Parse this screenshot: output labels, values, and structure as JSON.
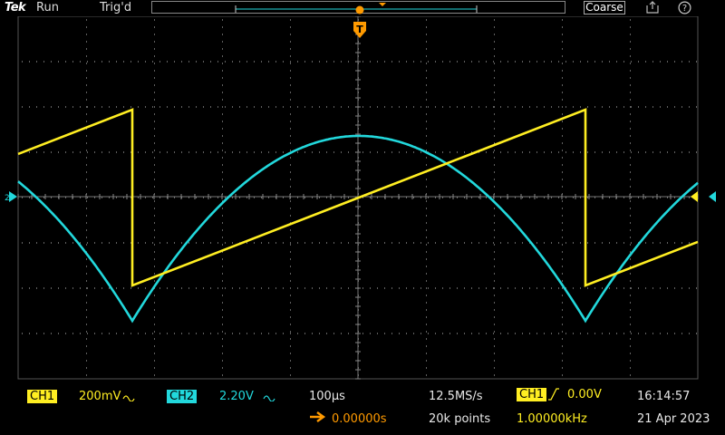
{
  "header": {
    "logo": "Tek",
    "run_state": "Run",
    "trigger_state": "Trig'd",
    "zoom_mode": "Coarse",
    "export_icon": "export-icon",
    "help_icon": "help-icon"
  },
  "markers": {
    "trigger_marker": "T",
    "ch2_ground_marker": "2"
  },
  "colors": {
    "ch1": "#ffee22",
    "ch2": "#22d8dc",
    "trigger": "#ff9a00",
    "graticule": "#9a9a9a"
  },
  "channels": [
    {
      "label": "CH1",
      "scale": "200mV",
      "coupling_icon": "ac-coupling-icon"
    },
    {
      "label": "CH2",
      "scale": "2.20V",
      "coupling_icon": "ac-coupling-icon"
    }
  ],
  "timebase": {
    "scale": "100µs",
    "delay": "0.00000s",
    "sample_rate": "12.5MS/s",
    "record_length": "20k points"
  },
  "trigger": {
    "source": "CH1",
    "slope_icon": "rising-edge-icon",
    "level": "0.00V",
    "frequency": "1.00000kHz"
  },
  "clock": {
    "time": "16:14:57",
    "date": "21 Apr 2023"
  }
}
